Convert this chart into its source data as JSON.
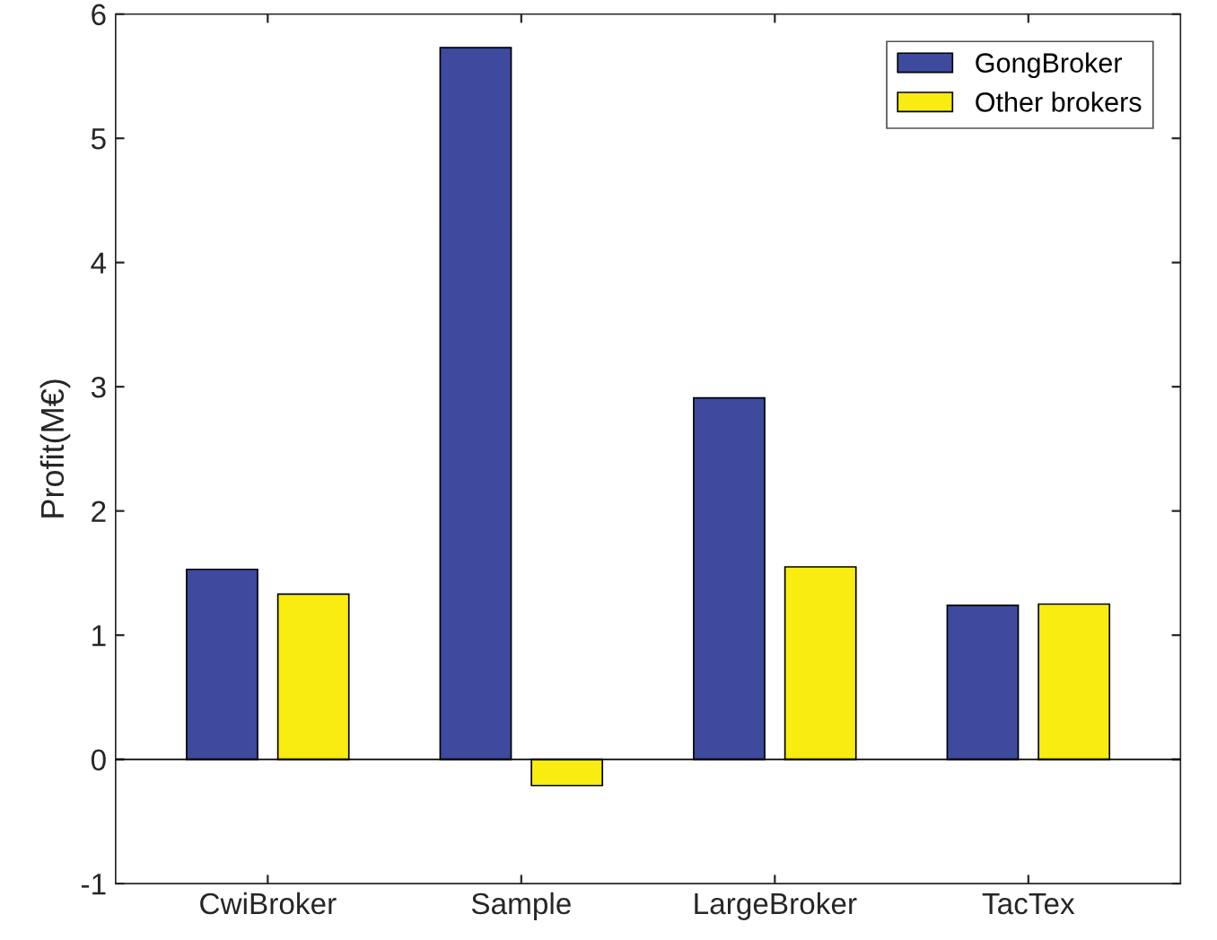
{
  "chart_data": {
    "type": "bar",
    "categories": [
      "CwiBroker",
      "Sample",
      "LargeBroker",
      "TacTex"
    ],
    "series": [
      {
        "name": "GongBroker",
        "color": "#3e4a9e",
        "values": [
          1.53,
          5.73,
          2.91,
          1.24
        ]
      },
      {
        "name": "Other brokers",
        "color": "#f8ec10",
        "values": [
          1.33,
          -0.21,
          1.55,
          1.25
        ]
      }
    ],
    "ylabel": "Profit(M€)",
    "ylim": [
      -1,
      6
    ],
    "yticks": [
      -1,
      0,
      1,
      2,
      3,
      4,
      5,
      6
    ],
    "ref_lines": [
      {
        "axis": "y",
        "value": 0,
        "color": "#000000"
      }
    ],
    "legend": "top right",
    "grid": false
  }
}
